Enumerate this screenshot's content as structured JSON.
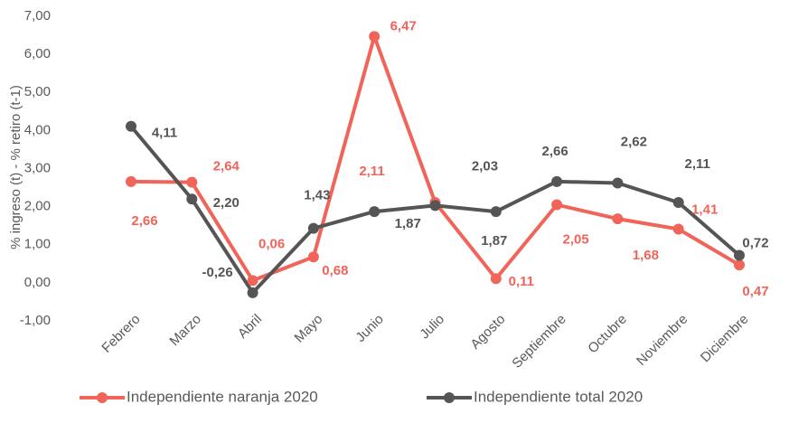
{
  "chart_data": {
    "type": "line",
    "ylabel": "% ingreso (t) - % retiro (t-1)",
    "categories": [
      "Febrero",
      "Marzo",
      "Abril",
      "Mayo",
      "Junio",
      "Julio",
      "Agosto",
      "Septiembre",
      "Octubre",
      "Noviembre",
      "Diciembre"
    ],
    "series": [
      {
        "name": "Independiente naranja 2020",
        "color": "#f0645a",
        "values": [
          2.66,
          2.64,
          0.06,
          0.68,
          6.47,
          2.11,
          0.11,
          2.05,
          1.68,
          1.41,
          0.47
        ],
        "value_labels": [
          "2,66",
          "2,64",
          "0,06",
          "0,68",
          "6,47",
          "2,11",
          "0,11",
          "2,05",
          "1,68",
          "1,41",
          "0,47"
        ]
      },
      {
        "name": "Independiente total 2020",
        "color": "#555555",
        "values": [
          4.11,
          2.2,
          -0.26,
          1.43,
          1.87,
          2.03,
          1.87,
          2.66,
          2.62,
          2.11,
          0.72
        ],
        "value_labels": [
          "4,11",
          "2,20",
          "-0,26",
          "1,43",
          "1,87",
          "2,03",
          "1,87",
          "2,66",
          "2,62",
          "2,11",
          "0,72"
        ]
      }
    ],
    "ylim": [
      -1,
      7
    ],
    "yticks": [
      {
        "value": -1,
        "label": "-1,00"
      },
      {
        "value": 0,
        "label": "0,00"
      },
      {
        "value": 1,
        "label": "1,00"
      },
      {
        "value": 2,
        "label": "2,00"
      },
      {
        "value": 3,
        "label": "3,00"
      },
      {
        "value": 4,
        "label": "4,00"
      },
      {
        "value": 5,
        "label": "5,00"
      },
      {
        "value": 6,
        "label": "6,00"
      },
      {
        "value": 7,
        "label": "7,00"
      }
    ],
    "grid": false,
    "legend": "bottom"
  }
}
